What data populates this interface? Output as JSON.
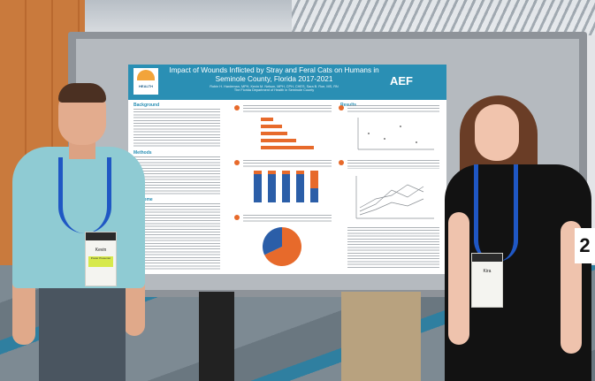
{
  "poster": {
    "title": "Impact of Wounds Inflicted by Stray and Feral Cats on Humans in Seminole County, Florida 2017-2021",
    "authors": "Robin H. Hardeman, MPH, Kevin M. Nelson, MPH, CPH, CHES, Sara B. Roe, MS, RN",
    "affiliation": "The Florida Department of Health in Seminole County",
    "logo_text": "HEALTH",
    "partner_logo": "AEF",
    "sections": {
      "background": "Background",
      "methods": "Methods",
      "outcome": "Outcome",
      "results": "Results"
    },
    "chart_pie": {
      "slices": [
        {
          "value": 68,
          "color": "#e76a2b"
        },
        {
          "value": 32,
          "color": "#2b5ea8"
        }
      ]
    }
  },
  "board_number": "2",
  "badges": {
    "left": {
      "name": "Kevin",
      "ribbon": "Poster Presenter"
    },
    "right": {
      "name": "Kira",
      "ribbon": ""
    }
  },
  "colors": {
    "poster_accent": "#2a8fb4",
    "bar_orange": "#e76a2b",
    "bar_blue": "#2b5ea8",
    "lanyard": "#1f57c4"
  }
}
